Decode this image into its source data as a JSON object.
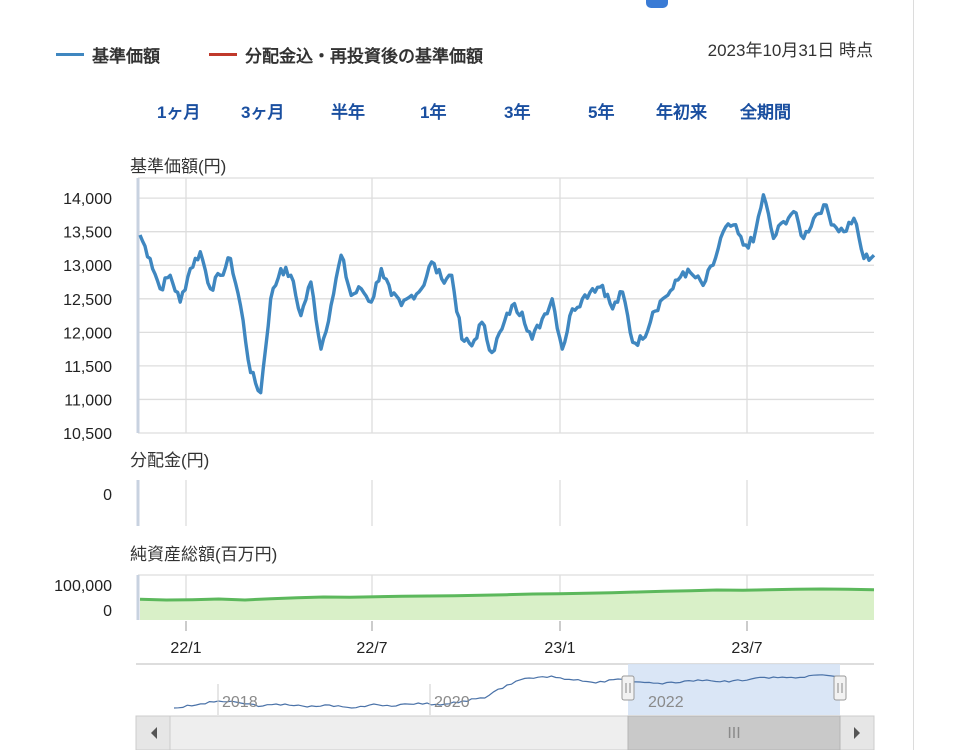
{
  "header": {
    "legend": [
      {
        "label": "基準価額",
        "color": "#3f87c0"
      },
      {
        "label": "分配金込・再投資後の基準価額",
        "color": "#c0392b"
      }
    ],
    "as_of": "2023年10月31日 時点"
  },
  "range_buttons": [
    "1ヶ月",
    "3ヶ月",
    "半年",
    "1年",
    "3年",
    "5年",
    "年初来",
    "全期間"
  ],
  "panels": {
    "nav": {
      "title": "基準価額(円)"
    },
    "dist": {
      "title": "分配金(円)"
    },
    "aum": {
      "title": "純資産総額(百万円)"
    }
  },
  "navigator": {
    "labels": [
      "2018",
      "2020",
      "2022"
    ],
    "thumb_symbol": "III"
  },
  "colors": {
    "price_line": "#3f87c0",
    "aum_line": "#5cb85c",
    "aum_fill": "#d9f0c8",
    "grid": "#dddddd"
  },
  "chart_data": [
    {
      "type": "line",
      "title": "基準価額(円)",
      "ylabel": "基準価額(円)",
      "yticks": [
        14000,
        13500,
        13000,
        12500,
        12000,
        11500,
        11000,
        10500
      ],
      "ylim": [
        10500,
        14300
      ],
      "xticks": [
        "22/1",
        "22/7",
        "23/1",
        "23/7"
      ],
      "series": [
        {
          "name": "基準価額",
          "x": [
            "21/11",
            "21/11",
            "21/12",
            "21/12",
            "21/12",
            "22/1",
            "22/1",
            "22/1",
            "22/2",
            "22/2",
            "22/3",
            "22/3",
            "22/3",
            "22/3",
            "22/4",
            "22/4",
            "22/4",
            "22/5",
            "22/5",
            "22/5",
            "22/6",
            "22/6",
            "22/6",
            "22/6",
            "22/7",
            "22/7",
            "22/7",
            "22/8",
            "22/8",
            "22/8",
            "22/8",
            "22/9",
            "22/9",
            "22/9",
            "22/10",
            "22/10",
            "22/10",
            "22/11",
            "22/11",
            "22/11",
            "22/12",
            "22/12",
            "22/12",
            "23/1",
            "23/1",
            "23/1",
            "23/2",
            "23/2",
            "23/2",
            "23/3",
            "23/3",
            "23/3",
            "23/4",
            "23/4",
            "23/4",
            "23/5",
            "23/5",
            "23/5",
            "23/6",
            "23/6",
            "23/6",
            "23/7",
            "23/7",
            "23/7",
            "23/8",
            "23/8",
            "23/8",
            "23/9",
            "23/9",
            "23/9",
            "23/10",
            "23/10",
            "23/10",
            "23/10"
          ],
          "values": [
            13450,
            13100,
            12650,
            12850,
            12450,
            12950,
            13200,
            12650,
            12850,
            13100,
            12400,
            11400,
            11100,
            12500,
            12950,
            12850,
            12250,
            12750,
            11750,
            12400,
            13150,
            12550,
            12650,
            12450,
            12950,
            12550,
            12400,
            12550,
            12650,
            13050,
            12800,
            12850,
            11900,
            11800,
            12150,
            11700,
            12050,
            12400,
            12300,
            11900,
            12200,
            12500,
            11750,
            12350,
            12500,
            12650,
            12700,
            12350,
            12600,
            11850,
            11900,
            12300,
            12500,
            12650,
            12900,
            12850,
            12700,
            13000,
            13500,
            13600,
            13300,
            13350,
            14050,
            13400,
            13650,
            13800,
            13400,
            13700,
            13900,
            13600,
            13500,
            13700,
            13100,
            13150
          ]
        }
      ]
    },
    {
      "type": "line",
      "title": "分配金(円)",
      "ylabel": "分配金(円)",
      "yticks": [
        0
      ],
      "series": [
        {
          "name": "分配金",
          "values": [
            0
          ]
        }
      ]
    },
    {
      "type": "area",
      "title": "純資産総額(百万円)",
      "ylabel": "純資産総額(百万円)",
      "yticks": [
        100000,
        0
      ],
      "ylim": [
        0,
        135000
      ],
      "series": [
        {
          "name": "純資産総額",
          "values": [
            62000,
            60000,
            61000,
            63000,
            60000,
            64000,
            67000,
            69000,
            68000,
            70000,
            71000,
            72000,
            73000,
            74000,
            76000,
            78000,
            79000,
            80000,
            82000,
            84000,
            86000,
            88000,
            90000,
            89000,
            91000,
            92000,
            93000,
            92000,
            91000
          ]
        }
      ]
    },
    {
      "type": "line",
      "title": "",
      "xticks": [
        "2018",
        "2020",
        "2022"
      ],
      "series": [
        {
          "name": "navigator",
          "values": [
            10200,
            10500,
            10900,
            10700,
            10400,
            10600,
            10300,
            10500,
            10200,
            10600,
            10400,
            10700,
            10500,
            10900,
            11200,
            12500,
            13200,
            13400,
            13000,
            12700,
            13100,
            12800,
            12600,
            12900,
            13000,
            12800,
            13100,
            13300,
            13200,
            13500,
            13300
          ]
        }
      ]
    }
  ]
}
